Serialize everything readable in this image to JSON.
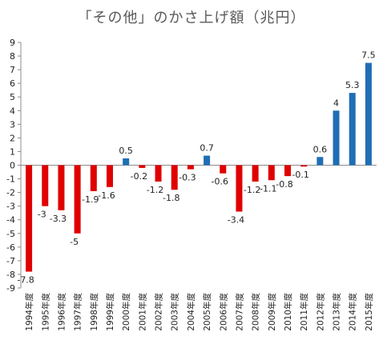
{
  "chart_data": {
    "type": "bar",
    "title": "「その他」のかさ上げ額（兆円）",
    "xlabel": "",
    "ylabel": "",
    "ylim": [
      -9,
      9
    ],
    "yticks": [
      9,
      8,
      7,
      6,
      5,
      4,
      3,
      2,
      1,
      0,
      -1,
      -2,
      -3,
      -4,
      -5,
      -6,
      -7,
      -8,
      -9
    ],
    "grid": false,
    "legend": "none",
    "categories": [
      "1994年度",
      "1995年度",
      "1996年度",
      "1997年度",
      "1998年度",
      "1999年度",
      "2000年度",
      "2001年度",
      "2002年度",
      "2003年度",
      "2004年度",
      "2005年度",
      "2006年度",
      "2007年度",
      "2008年度",
      "2009年度",
      "2010年度",
      "2011年度",
      "2012年度",
      "2013年度",
      "2014年度",
      "2015年度"
    ],
    "values": [
      -7.8,
      -3,
      -3.3,
      -5,
      -1.9,
      -1.6,
      0.5,
      -0.2,
      -1.2,
      -1.8,
      -0.3,
      0.7,
      -0.6,
      -3.4,
      -1.2,
      -1.1,
      -0.8,
      -0.1,
      0.6,
      4,
      5.3,
      7.5
    ],
    "data_labels": [
      "-7.8",
      "-3",
      "-3.3",
      "-5",
      "-1.9",
      "-1.6",
      "0.5",
      "-0.2",
      "-1.2",
      "-1.8",
      "-0.3",
      "0.7",
      "-0.6",
      "-3.4",
      "-1.2",
      "-1.1",
      "-0.8",
      "-0.1",
      "0.6",
      "4",
      "5.3",
      "7.5"
    ],
    "colors": {
      "negative": "#e00000",
      "positive": "#1f6eb4",
      "axis": "#8c8c8c"
    }
  }
}
